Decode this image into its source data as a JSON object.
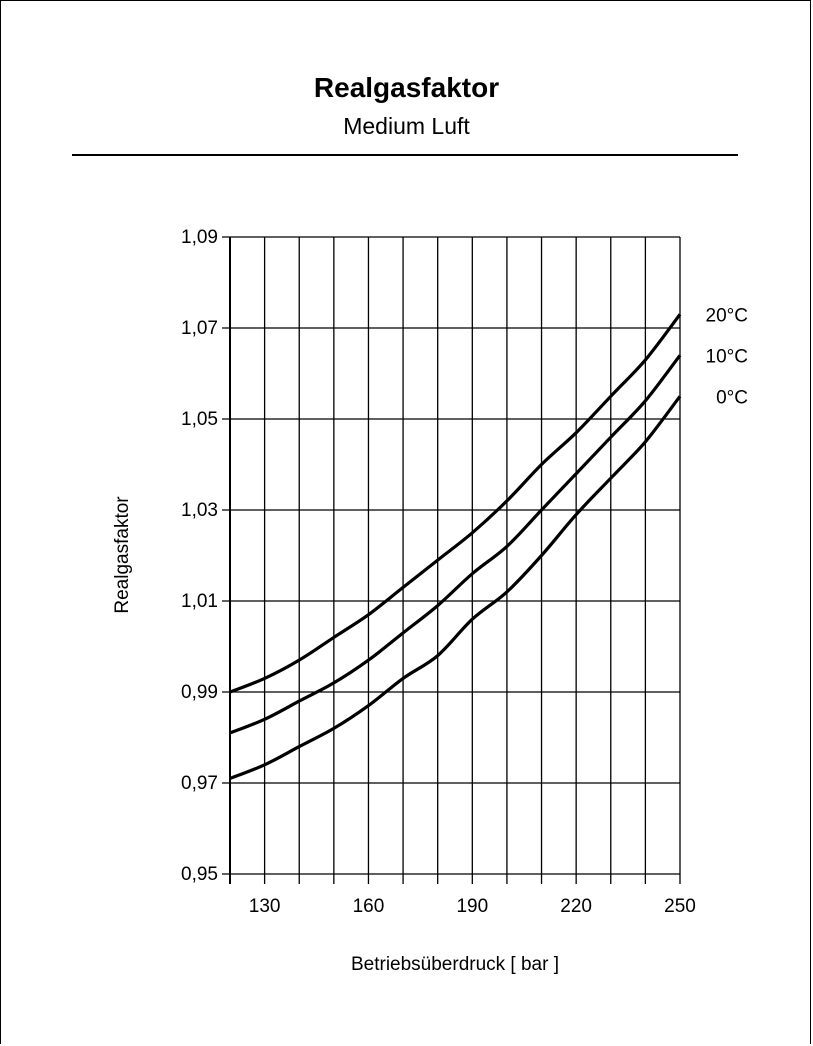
{
  "header": {
    "title": "Realgasfaktor",
    "subtitle": "Medium Luft"
  },
  "chart_data": {
    "type": "line",
    "title": "Realgasfaktor",
    "subtitle": "Medium Luft",
    "xlabel": "Betriebsüberdruck [ bar ]",
    "ylabel": "Realgasfaktor",
    "xlim": [
      120,
      250
    ],
    "ylim": [
      0.95,
      1.09
    ],
    "x_ticks": [
      130,
      160,
      190,
      220,
      250
    ],
    "x_tick_labels": [
      "130",
      "160",
      "190",
      "220",
      "250"
    ],
    "x_grid_step": 10,
    "y_ticks": [
      0.95,
      0.97,
      0.99,
      1.01,
      1.03,
      1.05,
      1.07,
      1.09
    ],
    "y_tick_labels": [
      "0,95",
      "0,97",
      "0,99",
      "1,01",
      "1,03",
      "1,05",
      "1,07",
      "1,09"
    ],
    "y_grid_step": 0.02,
    "grid": true,
    "legend": "curve labels at right end",
    "line_color": "#000000",
    "series": [
      {
        "name": "20°C",
        "x": [
          120,
          130,
          140,
          150,
          160,
          170,
          180,
          190,
          200,
          210,
          220,
          230,
          240,
          250
        ],
        "values": [
          0.99,
          0.993,
          0.997,
          1.002,
          1.007,
          1.013,
          1.019,
          1.025,
          1.032,
          1.04,
          1.047,
          1.055,
          1.063,
          1.073
        ]
      },
      {
        "name": "10°C",
        "x": [
          120,
          130,
          140,
          150,
          160,
          170,
          180,
          190,
          200,
          210,
          220,
          230,
          240,
          250
        ],
        "values": [
          0.981,
          0.984,
          0.988,
          0.992,
          0.997,
          1.003,
          1.009,
          1.016,
          1.022,
          1.03,
          1.038,
          1.046,
          1.054,
          1.064
        ]
      },
      {
        "name": "0°C",
        "x": [
          120,
          130,
          140,
          150,
          160,
          170,
          180,
          190,
          200,
          210,
          220,
          230,
          240,
          250
        ],
        "values": [
          0.971,
          0.974,
          0.978,
          0.982,
          0.987,
          0.993,
          0.998,
          1.006,
          1.012,
          1.02,
          1.029,
          1.037,
          1.045,
          1.055
        ]
      }
    ]
  }
}
